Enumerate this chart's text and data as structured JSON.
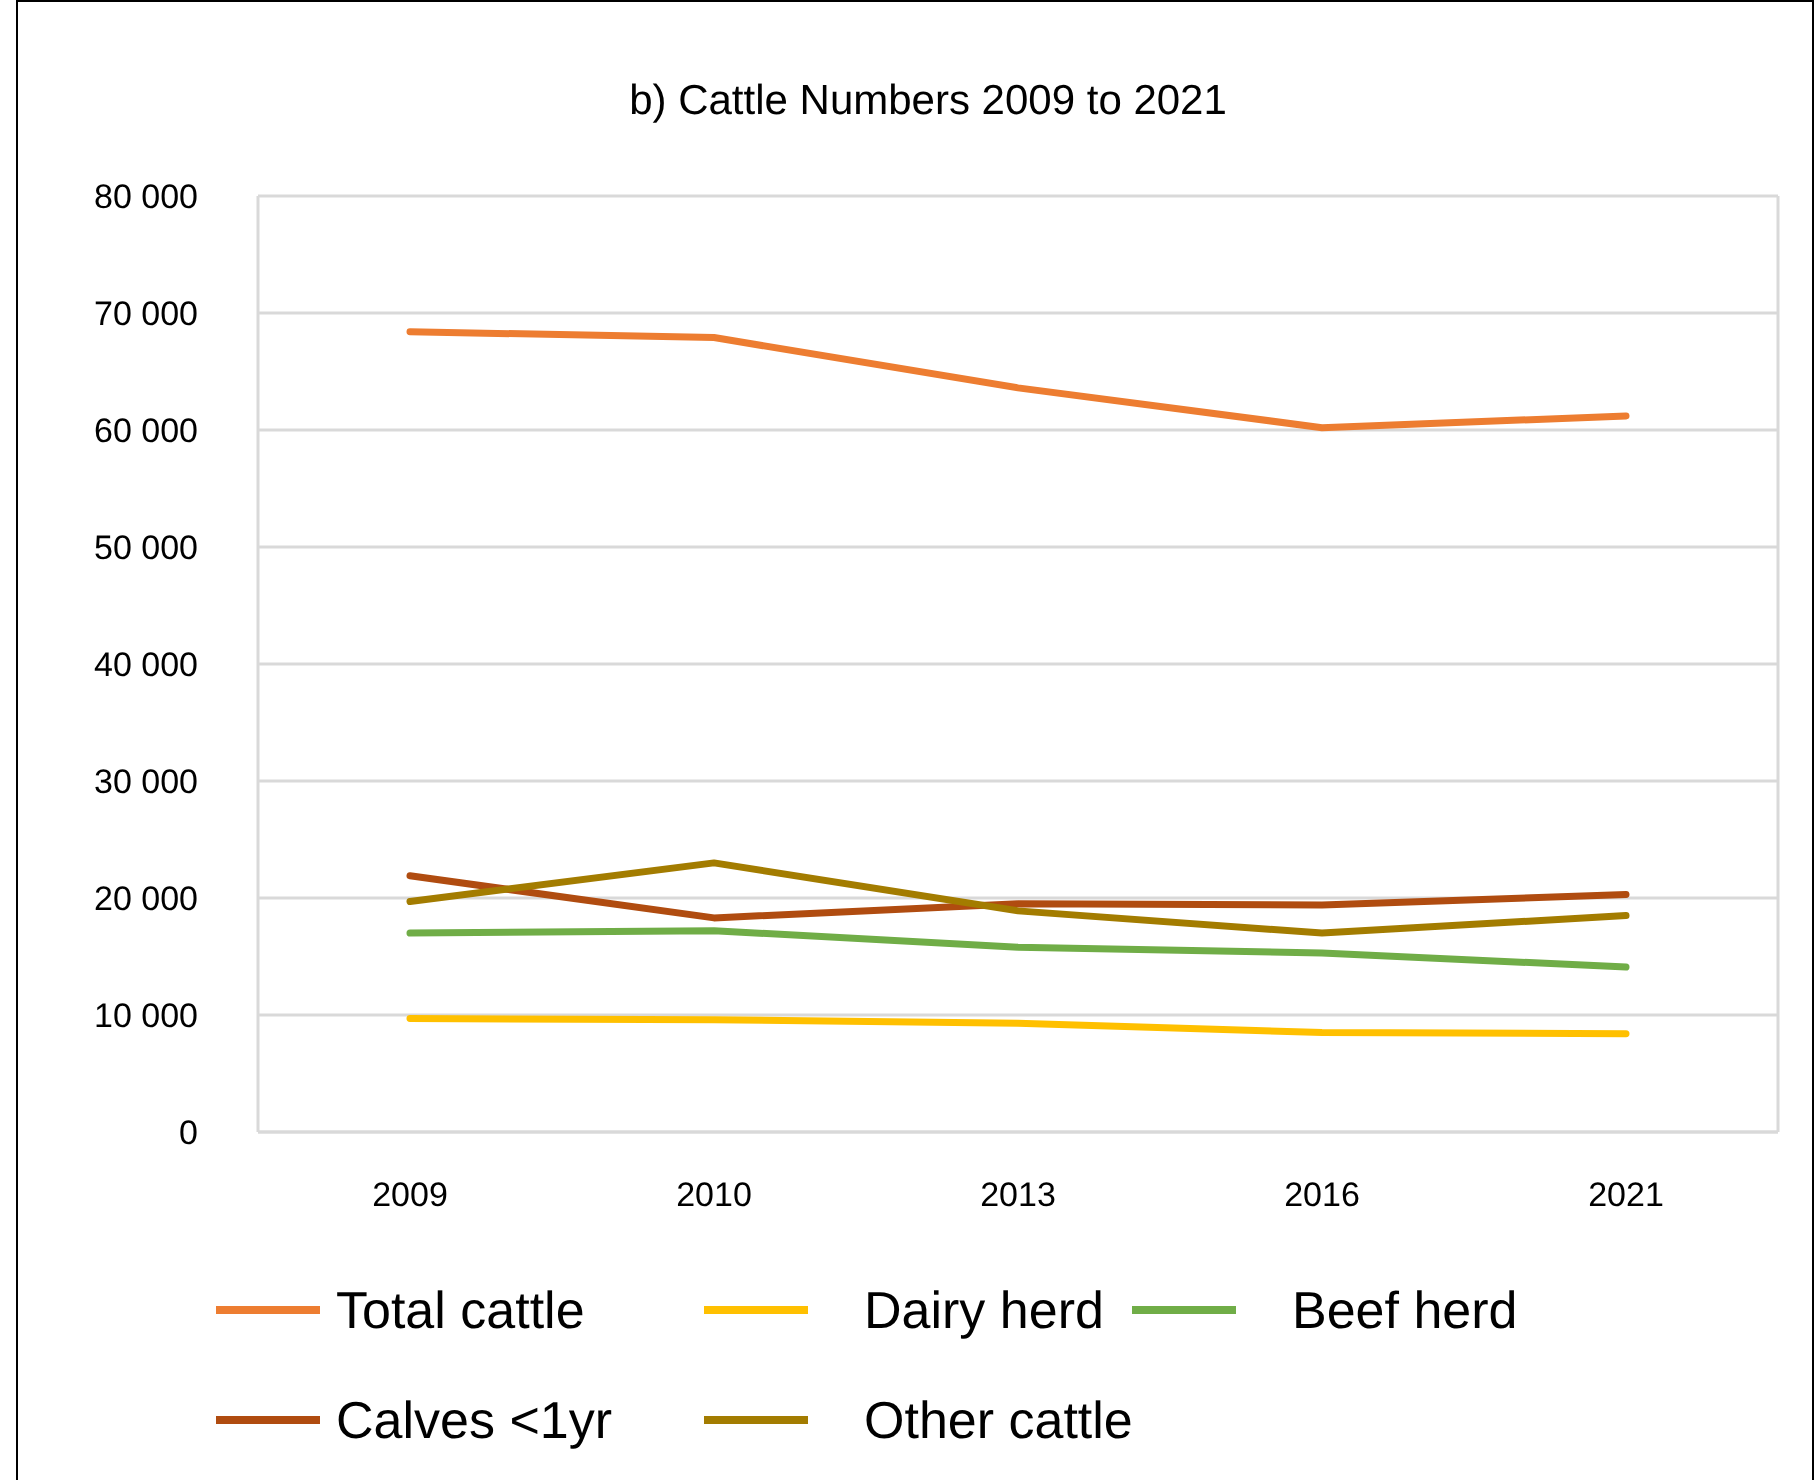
{
  "chart_data": {
    "type": "line",
    "title": "b) Cattle Numbers 2009 to 2021",
    "categories": [
      "2009",
      "2010",
      "2013",
      "2016",
      "2021"
    ],
    "series": [
      {
        "name": "Total cattle",
        "color": "#ed7d31",
        "values": [
          68400,
          67900,
          63600,
          60200,
          61200
        ]
      },
      {
        "name": "Dairy herd",
        "color": "#ffc000",
        "values": [
          9700,
          9600,
          9300,
          8500,
          8400
        ]
      },
      {
        "name": "Beef herd",
        "color": "#70ad47",
        "values": [
          17000,
          17200,
          15800,
          15300,
          14100
        ]
      },
      {
        "name": "Calves <1yr",
        "color": "#b04c10",
        "values": [
          21900,
          18300,
          19500,
          19400,
          20300
        ]
      },
      {
        "name": "Other cattle",
        "color": "#a37c00",
        "values": [
          19700,
          23000,
          18900,
          17000,
          18500
        ]
      }
    ],
    "ylim": [
      0,
      80000
    ],
    "yticks": [
      {
        "value": 0,
        "label": "0"
      },
      {
        "value": 10000,
        "label": "10 000"
      },
      {
        "value": 20000,
        "label": "20 000"
      },
      {
        "value": 30000,
        "label": "30 000"
      },
      {
        "value": 40000,
        "label": "40 000"
      },
      {
        "value": 50000,
        "label": "50 000"
      },
      {
        "value": 60000,
        "label": "60 000"
      },
      {
        "value": 70000,
        "label": "70 000"
      },
      {
        "value": 80000,
        "label": "80 000"
      }
    ],
    "grid": "y",
    "legend": "bottom",
    "marker": "none",
    "line_style": "solid"
  }
}
